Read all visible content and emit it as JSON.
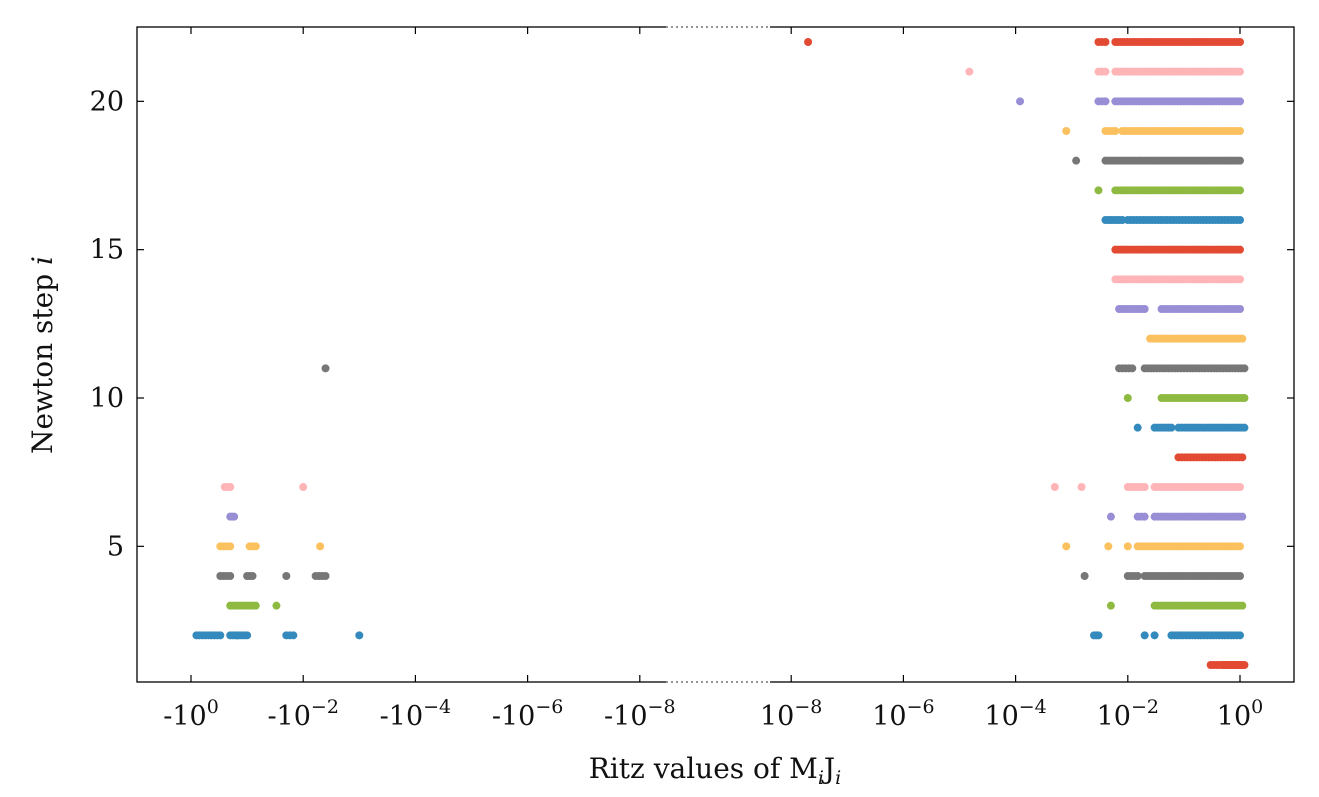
{
  "chart_data": {
    "type": "scatter",
    "xlabel": "Ritz values of M",
    "xlabel_sub1": "i",
    "xlabel_mid": "J",
    "xlabel_sub2": "i",
    "ylabel": "Newton step ",
    "ylabel_var": "i",
    "x_scale": "symmetric-log with axis break between -10^-8 and 10^-8",
    "ylim": [
      1,
      22
    ],
    "y_ticks": [
      5,
      10,
      15,
      20
    ],
    "x_ticks_negative": [
      {
        "base": "-10",
        "exp": "0"
      },
      {
        "base": "-10",
        "exp": "−2"
      },
      {
        "base": "-10",
        "exp": "−4"
      },
      {
        "base": "-10",
        "exp": "−6"
      },
      {
        "base": "-10",
        "exp": "−8"
      }
    ],
    "x_ticks_positive": [
      {
        "base": "10",
        "exp": "−8"
      },
      {
        "base": "10",
        "exp": "−6"
      },
      {
        "base": "10",
        "exp": "−4"
      },
      {
        "base": "10",
        "exp": "−2"
      },
      {
        "base": "10",
        "exp": "0"
      }
    ],
    "grid": false,
    "legend": "none",
    "step_colors": {
      "1": "#e24a33",
      "2": "#348abd",
      "3": "#8eba42",
      "4": "#777777",
      "5": "#fbc15e",
      "6": "#988ed5",
      "7": "#ffb5b8",
      "8": "#e24a33",
      "9": "#348abd",
      "10": "#8eba42",
      "11": "#777777",
      "12": "#fbc15e",
      "13": "#988ed5",
      "14": "#ffb5b8",
      "15": "#e24a33",
      "16": "#348abd",
      "17": "#8eba42",
      "18": "#777777",
      "19": "#fbc15e",
      "20": "#988ed5",
      "21": "#ffb5b8",
      "22": "#e24a33"
    },
    "series": [
      {
        "step": 1,
        "positive": [
          [
            0.3,
            1.1
          ],
          [
            0.5,
            1.0
          ],
          [
            0.6,
            1.2
          ]
        ],
        "negative": []
      },
      {
        "step": 2,
        "positive": [
          [
            0.0025,
            0.003
          ],
          [
            0.02,
            0.02
          ],
          [
            0.03,
            0.03
          ],
          [
            0.06,
            1.0
          ]
        ],
        "negative": [
          [
            -0.1,
            -0.2
          ],
          [
            -0.3,
            -0.8
          ],
          [
            -0.015,
            -0.02
          ],
          [
            -0.15,
            -0.15
          ],
          [
            -0.001,
            -0.001
          ]
        ]
      },
      {
        "step": 3,
        "positive": [
          [
            0.005,
            0.005
          ],
          [
            0.03,
            1.1
          ]
        ],
        "negative": [
          [
            -0.2,
            -0.07
          ],
          [
            -0.03,
            -0.03
          ]
        ]
      },
      {
        "step": 4,
        "positive": [
          [
            0.0017,
            0.0017
          ],
          [
            0.01,
            0.015
          ],
          [
            0.02,
            1.0
          ]
        ],
        "negative": [
          [
            -0.3,
            -0.2
          ],
          [
            -0.1,
            -0.08
          ],
          [
            -0.02,
            -0.02
          ],
          [
            -0.006,
            -0.004
          ]
        ]
      },
      {
        "step": 5,
        "positive": [
          [
            0.0008,
            0.0008
          ],
          [
            0.0045,
            0.0045
          ],
          [
            0.01,
            0.01
          ],
          [
            0.015,
            1.0
          ]
        ],
        "negative": [
          [
            -0.3,
            -0.2
          ],
          [
            -0.09,
            -0.07
          ],
          [
            -0.005,
            -0.005
          ]
        ]
      },
      {
        "step": 6,
        "positive": [
          [
            0.005,
            0.005
          ],
          [
            0.015,
            0.02
          ],
          [
            0.03,
            1.1
          ]
        ],
        "negative": [
          [
            -0.2,
            -0.17
          ]
        ]
      },
      {
        "step": 7,
        "positive": [
          [
            0.0005,
            0.0005
          ],
          [
            0.0015,
            0.0015
          ],
          [
            0.01,
            0.02
          ],
          [
            0.03,
            1.0
          ]
        ],
        "negative": [
          [
            -0.25,
            -0.2
          ],
          [
            -0.01,
            -0.01
          ]
        ]
      },
      {
        "step": 8,
        "positive": [
          [
            0.08,
            1.1
          ]
        ],
        "negative": []
      },
      {
        "step": 9,
        "positive": [
          [
            0.015,
            0.015
          ],
          [
            0.03,
            0.06
          ],
          [
            0.08,
            1.2
          ]
        ],
        "negative": []
      },
      {
        "step": 10,
        "positive": [
          [
            0.01,
            0.01
          ],
          [
            0.04,
            1.2
          ]
        ],
        "negative": []
      },
      {
        "step": 11,
        "positive": [
          [
            0.007,
            0.012
          ],
          [
            0.02,
            1.2
          ]
        ],
        "negative": [
          [
            -0.004,
            -0.004
          ]
        ]
      },
      {
        "step": 12,
        "positive": [
          [
            0.025,
            1.1
          ]
        ],
        "negative": []
      },
      {
        "step": 13,
        "positive": [
          [
            0.007,
            0.02
          ],
          [
            0.04,
            1.0
          ]
        ],
        "negative": []
      },
      {
        "step": 14,
        "positive": [
          [
            0.006,
            1.0
          ]
        ],
        "negative": []
      },
      {
        "step": 15,
        "positive": [
          [
            0.006,
            1.0
          ]
        ],
        "negative": []
      },
      {
        "step": 16,
        "positive": [
          [
            0.004,
            0.008
          ],
          [
            0.01,
            1.0
          ]
        ],
        "negative": []
      },
      {
        "step": 17,
        "positive": [
          [
            0.003,
            0.003
          ],
          [
            0.006,
            1.0
          ]
        ],
        "negative": []
      },
      {
        "step": 18,
        "positive": [
          [
            0.0012,
            0.0012
          ],
          [
            0.004,
            1.0
          ]
        ],
        "negative": []
      },
      {
        "step": 19,
        "positive": [
          [
            0.0008,
            0.0008
          ],
          [
            0.004,
            0.006
          ],
          [
            0.008,
            1.0
          ]
        ],
        "negative": []
      },
      {
        "step": 20,
        "positive": [
          [
            0.00012,
            0.00012
          ],
          [
            0.003,
            0.004
          ],
          [
            0.006,
            1.0
          ]
        ],
        "negative": []
      },
      {
        "step": 21,
        "positive": [
          [
            1.5e-05,
            1.5e-05
          ],
          [
            0.003,
            0.004
          ],
          [
            0.006,
            1.0
          ]
        ],
        "negative": []
      },
      {
        "step": 22,
        "positive": [
          [
            2e-08,
            2e-08
          ],
          [
            0.003,
            0.004
          ],
          [
            0.006,
            1.0
          ]
        ],
        "negative": []
      }
    ]
  }
}
